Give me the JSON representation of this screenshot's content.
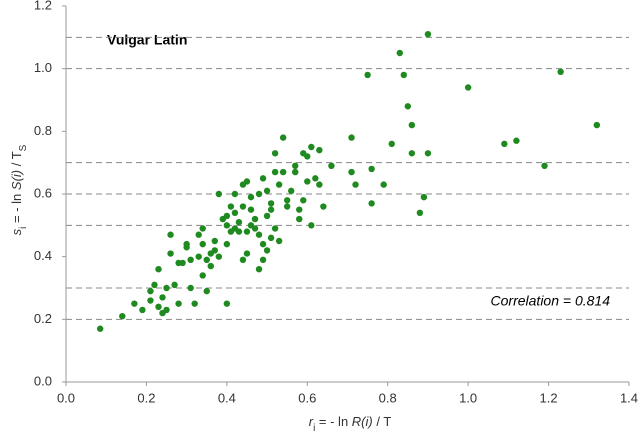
{
  "chart_data": {
    "type": "scatter",
    "annotations": [
      "Vulgar Latin",
      "Correlation = 0.814"
    ],
    "xlabel": [
      "r",
      "i",
      " = - ln ",
      "R(i)",
      " / T"
    ],
    "ylabel": [
      "s",
      "i",
      " = - ln ",
      "S(i)",
      " / T",
      "S"
    ],
    "color": "#1f8a1f",
    "xlim": [
      0,
      1.4
    ],
    "ylim": [
      0,
      1.2
    ],
    "xticks": [
      {
        "value": 0,
        "label": "0.0"
      },
      0.2,
      0.4,
      0.6,
      0.8,
      {
        "value": 1,
        "label": "1.0"
      },
      1.2,
      1.4
    ],
    "yticks": [
      {
        "value": 0,
        "label": "0.0"
      },
      0.2,
      0.4,
      0.6,
      0.8,
      {
        "value": 1,
        "label": "1.0"
      },
      1.2
    ],
    "grid_lines": [
      0.2,
      0.3,
      0.5,
      0.6,
      0.7,
      1,
      1.1
    ],
    "x": [
      0.085,
      0.14,
      0.17,
      0.19,
      0.21,
      0.21,
      0.22,
      0.23,
      0.23,
      0.24,
      0.24,
      0.25,
      0.25,
      0.26,
      0.26,
      0.27,
      0.28,
      0.28,
      0.29,
      0.3,
      0.3,
      0.31,
      0.31,
      0.32,
      0.33,
      0.33,
      0.34,
      0.34,
      0.34,
      0.35,
      0.35,
      0.36,
      0.36,
      0.37,
      0.37,
      0.38,
      0.38,
      0.39,
      0.4,
      0.4,
      0.4,
      0.4,
      0.41,
      0.41,
      0.42,
      0.42,
      0.42,
      0.43,
      0.43,
      0.44,
      0.44,
      0.44,
      0.45,
      0.45,
      0.45,
      0.46,
      0.46,
      0.46,
      0.47,
      0.47,
      0.48,
      0.48,
      0.48,
      0.49,
      0.49,
      0.49,
      0.5,
      0.5,
      0.5,
      0.51,
      0.51,
      0.51,
      0.52,
      0.52,
      0.52,
      0.53,
      0.53,
      0.54,
      0.54,
      0.55,
      0.55,
      0.56,
      0.57,
      0.57,
      0.58,
      0.58,
      0.59,
      0.59,
      0.6,
      0.6,
      0.61,
      0.61,
      0.62,
      0.63,
      0.63,
      0.64,
      0.66,
      0.71,
      0.71,
      0.72,
      0.75,
      0.76,
      0.76,
      0.79,
      0.81,
      0.83,
      0.84,
      0.85,
      0.86,
      0.86,
      0.88,
      0.89,
      0.9,
      0.9,
      1.0,
      1.09,
      1.12,
      1.19,
      1.23,
      1.32
    ],
    "y": [
      0.17,
      0.21,
      0.25,
      0.23,
      0.29,
      0.26,
      0.31,
      0.36,
      0.24,
      0.27,
      0.22,
      0.23,
      0.3,
      0.41,
      0.47,
      0.31,
      0.38,
      0.25,
      0.38,
      0.44,
      0.43,
      0.39,
      0.3,
      0.25,
      0.4,
      0.47,
      0.44,
      0.49,
      0.34,
      0.29,
      0.39,
      0.41,
      0.37,
      0.45,
      0.42,
      0.6,
      0.4,
      0.52,
      0.53,
      0.5,
      0.44,
      0.25,
      0.56,
      0.48,
      0.49,
      0.54,
      0.6,
      0.48,
      0.51,
      0.56,
      0.39,
      0.63,
      0.64,
      0.48,
      0.41,
      0.59,
      0.5,
      0.55,
      0.52,
      0.49,
      0.6,
      0.36,
      0.47,
      0.44,
      0.39,
      0.65,
      0.53,
      0.42,
      0.61,
      0.55,
      0.57,
      0.46,
      0.67,
      0.49,
      0.73,
      0.63,
      0.45,
      0.67,
      0.78,
      0.58,
      0.56,
      0.61,
      0.69,
      0.67,
      0.55,
      0.52,
      0.58,
      0.73,
      0.64,
      0.72,
      0.75,
      0.5,
      0.65,
      0.74,
      0.63,
      0.56,
      0.69,
      0.78,
      0.67,
      0.63,
      0.98,
      0.68,
      0.57,
      0.63,
      0.76,
      1.05,
      0.98,
      0.88,
      0.82,
      0.73,
      0.54,
      0.59,
      1.11,
      0.73,
      0.94,
      0.76,
      0.77,
      0.69,
      0.99,
      0.82
    ]
  }
}
